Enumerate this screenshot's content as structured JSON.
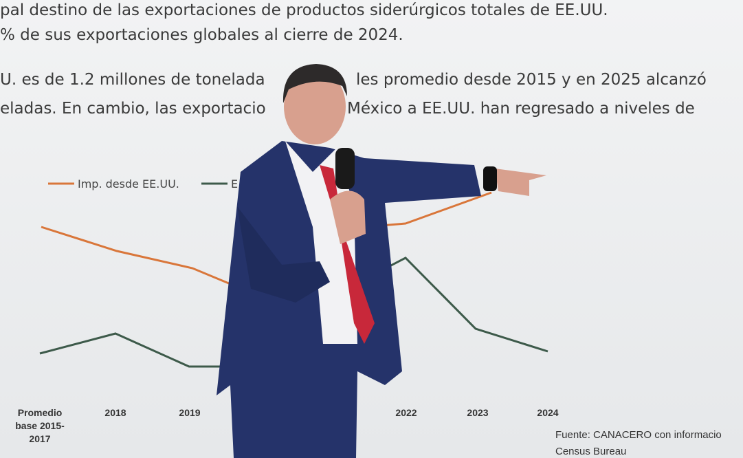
{
  "slide": {
    "text_lines": [
      [
        "pal destino de las exportaciones de productos siderúrgicos totales de EE.UU."
      ],
      [
        "% de sus exportaciones globales al cierre de 2024."
      ],
      [
        "U. es de 1.2 millones de tonelada",
        "les promedio desde 2015 y en 2025 alcanzó"
      ],
      [
        "eladas. En cambio, las exportacio",
        "México a EE.UU. han regresado a niveles de"
      ]
    ],
    "legend": [
      "Imp. desde EE.UU.",
      "E"
    ],
    "categories": [
      [
        "Promedio",
        "base 2015-",
        "2017"
      ],
      [
        "2018"
      ],
      [
        "2019"
      ],
      [
        "2022"
      ],
      [
        "2023"
      ],
      [
        "2024"
      ]
    ],
    "source": [
      "Fuente:  CANACERO con informacio",
      "Census Bureau"
    ]
  }
}
